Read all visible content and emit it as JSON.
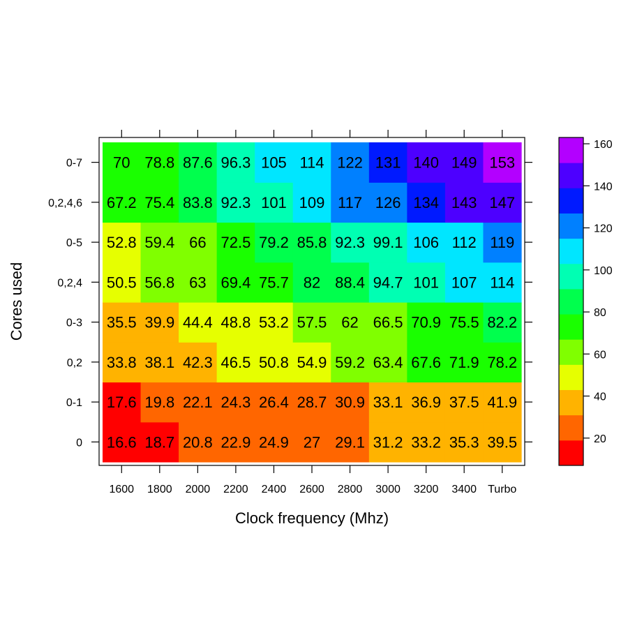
{
  "chart_data": {
    "type": "heatmap",
    "title": "",
    "xlabel": "Clock frequency (Mhz)",
    "ylabel": "Cores used",
    "x_categories": [
      "1600",
      "1800",
      "2000",
      "2200",
      "2400",
      "2600",
      "2800",
      "3000",
      "3200",
      "3400",
      "Turbo"
    ],
    "y_categories": [
      "0",
      "0-1",
      "0,2",
      "0-3",
      "0,2,4",
      "0-5",
      "0,2,4,6",
      "0-7"
    ],
    "values": [
      [
        "16.6",
        "18.7",
        "20.8",
        "22.9",
        "24.9",
        "27",
        "29.1",
        "31.2",
        "33.2",
        "35.3",
        "39.5"
      ],
      [
        "17.6",
        "19.8",
        "22.1",
        "24.3",
        "26.4",
        "28.7",
        "30.9",
        "33.1",
        "36.9",
        "37.5",
        "41.9"
      ],
      [
        "33.8",
        "38.1",
        "42.3",
        "46.5",
        "50.8",
        "54.9",
        "59.2",
        "63.4",
        "67.6",
        "71.9",
        "78.2"
      ],
      [
        "35.5",
        "39.9",
        "44.4",
        "48.8",
        "53.2",
        "57.5",
        "62",
        "66.5",
        "70.9",
        "75.5",
        "82.2"
      ],
      [
        "50.5",
        "56.8",
        "63",
        "69.4",
        "75.7",
        "82",
        "88.4",
        "94.7",
        "101",
        "107",
        "114"
      ],
      [
        "52.8",
        "59.4",
        "66",
        "72.5",
        "79.2",
        "85.8",
        "92.3",
        "99.1",
        "106",
        "112",
        "119"
      ],
      [
        "67.2",
        "75.4",
        "83.8",
        "92.3",
        "101",
        "109",
        "117",
        "126",
        "134",
        "143",
        "147"
      ],
      [
        "70",
        "78.8",
        "87.6",
        "96.3",
        "105",
        "114",
        "122",
        "131",
        "140",
        "149",
        "153"
      ]
    ],
    "colorscale": {
      "min": 7,
      "max": 163,
      "breaks": [
        7,
        19,
        31,
        43,
        55,
        67,
        79,
        91,
        103,
        115,
        127,
        139,
        151,
        163
      ],
      "colors": [
        "#FF0000",
        "#FF6600",
        "#FFB300",
        "#E6FF00",
        "#80FF00",
        "#1AFF00",
        "#00FF4D",
        "#00FFB3",
        "#00E6FF",
        "#0080FF",
        "#001AFF",
        "#4D00FF",
        "#B300FF",
        "#FF00E6",
        "#FF0080"
      ],
      "tick_labels": [
        "20",
        "40",
        "60",
        "80",
        "100",
        "120",
        "140",
        "160"
      ],
      "tick_values": [
        20,
        40,
        60,
        80,
        100,
        120,
        140,
        160
      ]
    },
    "legend": "colorkey-right",
    "grid": false
  }
}
